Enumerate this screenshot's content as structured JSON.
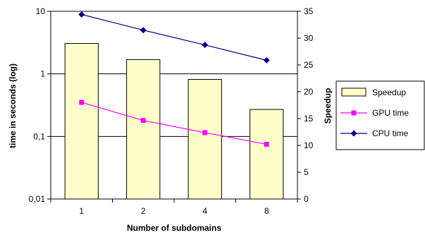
{
  "chart_data": {
    "type": "bar+line",
    "x_label": "Number of subdomains",
    "y_left_label": "time in seconds (log)",
    "y_right_label": "Speedup",
    "categories": [
      "1",
      "2",
      "4",
      "8"
    ],
    "y_left_scale": "log",
    "y_left_range": [
      0.01,
      10
    ],
    "y_left_ticks": [
      "0,01",
      "0,1",
      "1",
      "10"
    ],
    "y_left_tick_values": [
      0.01,
      0.1,
      1,
      10
    ],
    "y_right_range": [
      0,
      35
    ],
    "y_right_ticks": [
      "0",
      "5",
      "10",
      "15",
      "20",
      "25",
      "30",
      "35"
    ],
    "y_right_tick_values": [
      0,
      5,
      10,
      15,
      20,
      25,
      30,
      35
    ],
    "gridlines": "horizontal at left-axis decades",
    "legend_position": "right",
    "series": [
      {
        "name": "Speedup",
        "kind": "bar",
        "axis": "right",
        "color": "#ffffcc",
        "edge_color": "#000000",
        "values": [
          29,
          26,
          22.3,
          16.7
        ]
      },
      {
        "name": "GPU time",
        "kind": "line",
        "axis": "left",
        "marker": "square",
        "color": "#ff00ff",
        "values": [
          0.35,
          0.18,
          0.115,
          0.075
        ]
      },
      {
        "name": "CPU time",
        "kind": "line",
        "axis": "left",
        "marker": "diamond",
        "color": "#000080",
        "values": [
          8.9,
          5.0,
          2.9,
          1.65
        ]
      }
    ]
  }
}
